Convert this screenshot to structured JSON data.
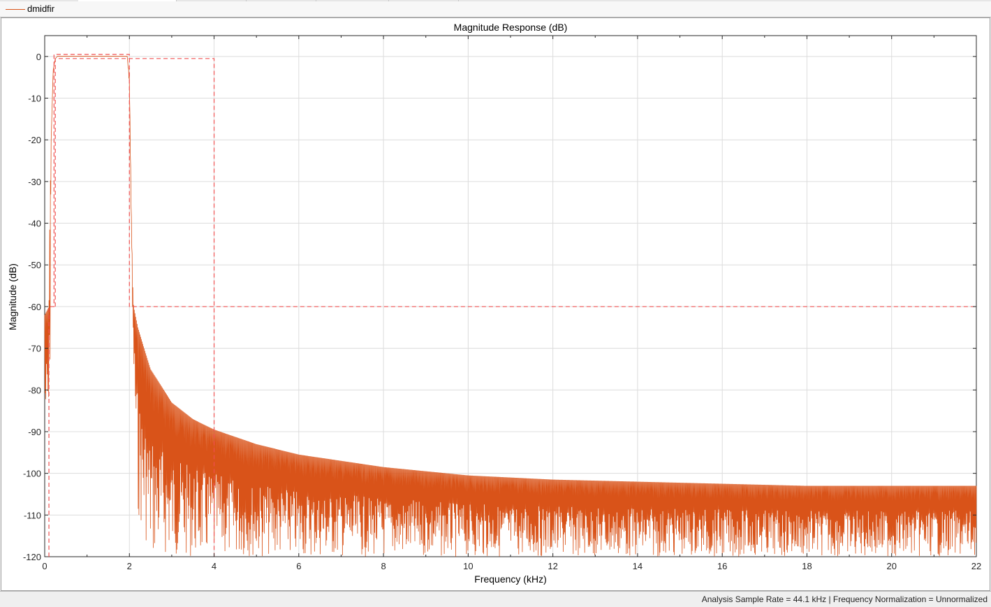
{
  "legend": {
    "label": "dmidfir"
  },
  "status": {
    "text": "Analysis Sample Rate = 44.1 kHz | Frequency Normalization = Unnormalized"
  },
  "colors": {
    "response": "#d95319",
    "mask": "#f05050",
    "grid": "#dcdcdc"
  },
  "chart_data": {
    "type": "line",
    "title": "Magnitude Response (dB)",
    "xlabel": "Frequency (kHz)",
    "ylabel": "Magnitude (dB)",
    "xlim": [
      0,
      22
    ],
    "ylim": [
      -120,
      5
    ],
    "xticks": [
      0,
      2,
      4,
      6,
      8,
      10,
      12,
      14,
      16,
      18,
      20,
      22
    ],
    "xtick_labels": [
      "0",
      "2",
      "4",
      "6",
      "8",
      "10",
      "12",
      "14",
      "16",
      "18",
      "20",
      "22"
    ],
    "yticks": [
      0,
      -10,
      -20,
      -30,
      -40,
      -50,
      -60,
      -70,
      -80,
      -90,
      -100,
      -110,
      -120
    ],
    "ytick_labels": [
      "0",
      "-10",
      "-20",
      "-30",
      "-40",
      "-50",
      "-60",
      "-70",
      "-80",
      "-90",
      "-100",
      "-110",
      "-120"
    ],
    "grid": true,
    "series": [
      {
        "name": "dmidfir",
        "x": [
          0,
          0.1,
          0.12,
          0.15,
          0.2,
          0.25,
          0.3,
          0.5,
          1.0,
          1.5,
          1.95,
          2.0,
          2.05,
          2.08,
          2.1,
          2.2,
          2.5,
          3.0,
          3.5,
          4.0,
          5.0,
          6.0,
          8.0,
          10.0,
          12.0,
          14.0,
          16.0,
          18.0,
          20.0,
          22.0
        ],
        "envelope_max": [
          -62,
          -60,
          -40,
          -20,
          -3,
          -0.5,
          0.3,
          0.3,
          0.3,
          0.3,
          0.3,
          -5,
          -40,
          -55,
          -60,
          -65,
          -75,
          -83,
          -87,
          -89.5,
          -93,
          -95.5,
          -98.5,
          -100.5,
          -101.5,
          -102,
          -102.5,
          -103,
          -103,
          -103
        ],
        "envelope_min": [
          -90,
          -92,
          -92,
          -22,
          -3.5,
          -0.6,
          -0.2,
          -0.2,
          -0.2,
          -0.2,
          -0.2,
          -8,
          -45,
          -70,
          -75,
          -110,
          -120,
          -120,
          -120,
          -120,
          -120,
          -120,
          -120,
          -120,
          -120,
          -120,
          -120,
          -120,
          -120,
          -120
        ]
      }
    ],
    "mask": {
      "upper": [
        [
          0.1,
          -120
        ],
        [
          0.1,
          -60
        ],
        [
          0.22,
          -60
        ],
        [
          0.22,
          0.5
        ],
        [
          2.0,
          0.5
        ],
        [
          2.0,
          -60
        ],
        [
          22.0,
          -60
        ]
      ],
      "lower": [
        [
          0.25,
          -60
        ],
        [
          0.25,
          -0.5
        ],
        [
          4.0,
          -0.5
        ],
        [
          4.0,
          -120
        ]
      ]
    }
  }
}
